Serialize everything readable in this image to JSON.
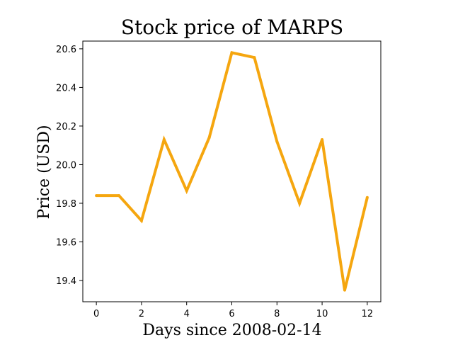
{
  "chart_data": {
    "type": "line",
    "title": "Stock price of MARPS",
    "xlabel": "Days since 2008-02-14",
    "ylabel": "Price (USD)",
    "x": [
      0,
      1,
      2,
      3,
      4,
      5,
      6,
      7,
      8,
      9,
      10,
      11,
      12
    ],
    "series": [
      {
        "values": [
          19.84,
          19.84,
          19.71,
          20.13,
          19.865,
          20.14,
          20.58,
          20.555,
          20.12,
          19.8,
          20.13,
          19.35,
          19.83
        ],
        "color": "#f5a60f"
      }
    ],
    "xlim": [
      -0.6,
      12.6
    ],
    "ylim": [
      19.29,
      20.64
    ],
    "xticks": [
      0,
      2,
      4,
      6,
      8,
      10,
      12
    ],
    "xtick_labels": [
      "0",
      "2",
      "4",
      "6",
      "8",
      "10",
      "12"
    ],
    "yticks": [
      19.4,
      19.6,
      19.8,
      20.0,
      20.2,
      20.4,
      20.6
    ],
    "ytick_labels": [
      "19.4",
      "19.6",
      "19.8",
      "20.0",
      "20.2",
      "20.4",
      "20.6"
    ],
    "grid": false,
    "legend": "none"
  }
}
